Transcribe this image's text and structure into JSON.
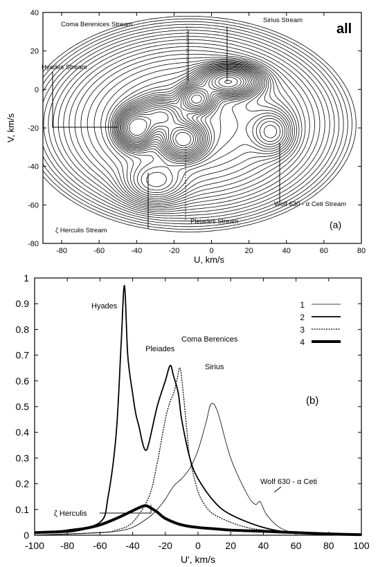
{
  "chart_data": [
    {
      "panel": "(a)",
      "type": "contour",
      "corner_label": "all",
      "panel_label": "(a)",
      "xlabel": "U, km/s",
      "ylabel": "V, km/s",
      "xlim": [
        -90,
        80
      ],
      "ylim": [
        -80,
        40
      ],
      "xticks": [
        "-80",
        "-60",
        "-40",
        "-20",
        "0",
        "20",
        "40",
        "60",
        "80"
      ],
      "yticks": [
        "40",
        "20",
        "0",
        "-20",
        "-40",
        "-60",
        "-80"
      ],
      "peaks": [
        {
          "name": "hyades",
          "u": -40,
          "v": -20,
          "amp": 1.0,
          "su": 5,
          "sv": 5
        },
        {
          "name": "pleiades",
          "u": -15,
          "v": -26,
          "amp": 0.9,
          "su": 6,
          "sv": 5
        },
        {
          "name": "coma",
          "u": -8,
          "v": -5,
          "amp": 0.7,
          "su": 5,
          "sv": 4
        },
        {
          "name": "sirius",
          "u": 9,
          "v": 4,
          "amp": 0.8,
          "su": 8,
          "sv": 4
        },
        {
          "name": "bridge",
          "u": -27,
          "v": -14,
          "amp": 0.55,
          "su": 7,
          "sv": 5
        },
        {
          "name": "wolf630",
          "u": 32,
          "v": -22,
          "amp": 0.14,
          "su": 6,
          "sv": 6
        },
        {
          "name": "hercules",
          "u": -30,
          "v": -48,
          "amp": 0.1,
          "su": 9,
          "sv": 6
        },
        {
          "name": "halo",
          "u": -12,
          "v": -18,
          "amp": 0.12,
          "su": 35,
          "sv": 22
        }
      ],
      "annotations": [
        {
          "text": "Coma Berenices Stream",
          "u": -10,
          "v": 12
        },
        {
          "text": "Sirius Stream",
          "u": 10,
          "v": 8
        },
        {
          "text": "Hyades Stream",
          "u": -42,
          "v": -20
        },
        {
          "text": "Wolf 630 - α Ceti Stream",
          "u": 36,
          "v": -26
        },
        {
          "text": "ζ Herculis Stream",
          "u": -30,
          "v": -50
        },
        {
          "text": "Pleiades Stream",
          "u": -12,
          "v": -28
        }
      ]
    },
    {
      "panel": "(b)",
      "type": "line",
      "panel_label": "(b)",
      "xlabel": "U', km/s",
      "xlim": [
        -100,
        100
      ],
      "ylim": [
        0,
        1
      ],
      "xticks": [
        "-100",
        "-80",
        "-60",
        "-40",
        "-20",
        "0",
        "20",
        "40",
        "60",
        "80",
        "100"
      ],
      "yticks": [
        "1",
        "0.9",
        "0.8",
        "0.7",
        "0.6",
        "0.5",
        "0.4",
        "0.3",
        "0.2",
        "0.1",
        "0"
      ],
      "legend": [
        "1",
        "2",
        "3",
        "4"
      ],
      "series": [
        {
          "name": "1",
          "x": [
            -100,
            -80,
            -60,
            -50,
            -40,
            -30,
            -25,
            -20,
            -15,
            -10,
            -5,
            0,
            5,
            8,
            12,
            20,
            30,
            35,
            38,
            42,
            50,
            60,
            80,
            100
          ],
          "y": [
            0,
            0.005,
            0.01,
            0.015,
            0.03,
            0.07,
            0.1,
            0.14,
            0.19,
            0.22,
            0.26,
            0.33,
            0.44,
            0.51,
            0.48,
            0.3,
            0.16,
            0.12,
            0.13,
            0.08,
            0.03,
            0.01,
            0.005,
            0
          ]
        },
        {
          "name": "2",
          "x": [
            -100,
            -80,
            -60,
            -55,
            -50,
            -47,
            -45,
            -43,
            -40,
            -38,
            -36,
            -34,
            -32,
            -30,
            -25,
            -20,
            -17,
            -15,
            -12,
            -10,
            -5,
            0,
            10,
            20,
            40,
            60,
            100
          ],
          "y": [
            0.01,
            0.02,
            0.05,
            0.15,
            0.4,
            0.75,
            0.97,
            0.7,
            0.55,
            0.47,
            0.42,
            0.36,
            0.33,
            0.36,
            0.5,
            0.6,
            0.66,
            0.62,
            0.55,
            0.45,
            0.3,
            0.22,
            0.13,
            0.08,
            0.03,
            0.01,
            0
          ]
        },
        {
          "name": "3",
          "x": [
            -100,
            -60,
            -50,
            -40,
            -30,
            -25,
            -20,
            -17,
            -15,
            -13,
            -11,
            -9,
            -7,
            -5,
            0,
            5,
            10,
            20,
            30,
            40,
            60,
            100
          ],
          "y": [
            0,
            0.01,
            0.02,
            0.05,
            0.15,
            0.28,
            0.45,
            0.52,
            0.55,
            0.6,
            0.65,
            0.55,
            0.42,
            0.3,
            0.17,
            0.11,
            0.08,
            0.05,
            0.03,
            0.02,
            0.01,
            0
          ]
        },
        {
          "name": "4",
          "x": [
            -100,
            -80,
            -70,
            -60,
            -50,
            -40,
            -35,
            -32,
            -30,
            -25,
            -20,
            -10,
            0,
            10,
            20,
            40,
            60,
            80,
            100
          ],
          "y": [
            0.01,
            0.015,
            0.025,
            0.04,
            0.065,
            0.095,
            0.11,
            0.115,
            0.11,
            0.09,
            0.065,
            0.04,
            0.03,
            0.025,
            0.02,
            0.015,
            0.01,
            0.005,
            0.002
          ]
        }
      ],
      "annotations": [
        {
          "text": "Hyades",
          "x": -45,
          "y": 0.97
        },
        {
          "text": "Pleiades",
          "x": -17,
          "y": 0.66
        },
        {
          "text": "Coma Berenices",
          "x": -12,
          "y": 0.65
        },
        {
          "text": "Sirius",
          "x": 8,
          "y": 0.51
        },
        {
          "text": "ζ Herculis",
          "x": -34,
          "y": 0.11
        },
        {
          "text": "Wolf 630 - α Ceti",
          "x": 38,
          "y": 0.13
        }
      ]
    }
  ]
}
